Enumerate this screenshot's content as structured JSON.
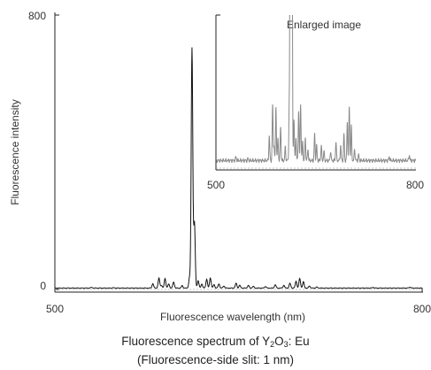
{
  "caption": {
    "line1_prefix": "Fluorescence spectrum of Y",
    "line1_sub1": "2",
    "line1_mid": "O",
    "line1_sub2": "3",
    "line1_suffix": ": Eu",
    "line2": "(Fluorescence-side slit: 1 nm)"
  },
  "colors": {
    "spectrum": "#111111",
    "inset_spectrum": "#8a8a8a",
    "axis": "#222222",
    "baseline": "#888888"
  },
  "chart_data": [
    {
      "type": "line",
      "xlabel": "Fluorescence wavelength (nm)",
      "ylabel": "Fluorescence intensity",
      "xlim": [
        500,
        800
      ],
      "ylim": [
        0,
        800
      ],
      "x_ticks": [
        "500",
        "800"
      ],
      "y_ticks": [
        "0",
        "800"
      ],
      "peaks": [
        [
          530,
          2
        ],
        [
          548,
          1
        ],
        [
          580,
          13
        ],
        [
          585,
          29
        ],
        [
          587,
          8
        ],
        [
          590,
          28
        ],
        [
          593,
          12
        ],
        [
          597,
          18
        ],
        [
          604,
          7
        ],
        [
          610,
          30
        ],
        [
          612,
          700
        ],
        [
          614,
          190
        ],
        [
          617,
          22
        ],
        [
          620,
          12
        ],
        [
          624,
          26
        ],
        [
          627,
          30
        ],
        [
          630,
          10
        ],
        [
          634,
          12
        ],
        [
          638,
          6
        ],
        [
          648,
          14
        ],
        [
          651,
          8
        ],
        [
          658,
          8
        ],
        [
          662,
          5
        ],
        [
          672,
          5
        ],
        [
          680,
          10
        ],
        [
          687,
          8
        ],
        [
          692,
          14
        ],
        [
          697,
          20
        ],
        [
          700,
          28
        ],
        [
          703,
          18
        ],
        [
          708,
          6
        ],
        [
          714,
          3
        ],
        [
          760,
          2
        ],
        [
          790,
          3
        ]
      ],
      "baseline_level": 4
    },
    {
      "type": "line",
      "title": "Enlarged image",
      "xlim": [
        500,
        800
      ],
      "ylim": [
        0,
        80
      ],
      "x_ticks": [
        "500",
        "800"
      ],
      "note": "magnified view of the same spectrum, clipped at top"
    }
  ]
}
